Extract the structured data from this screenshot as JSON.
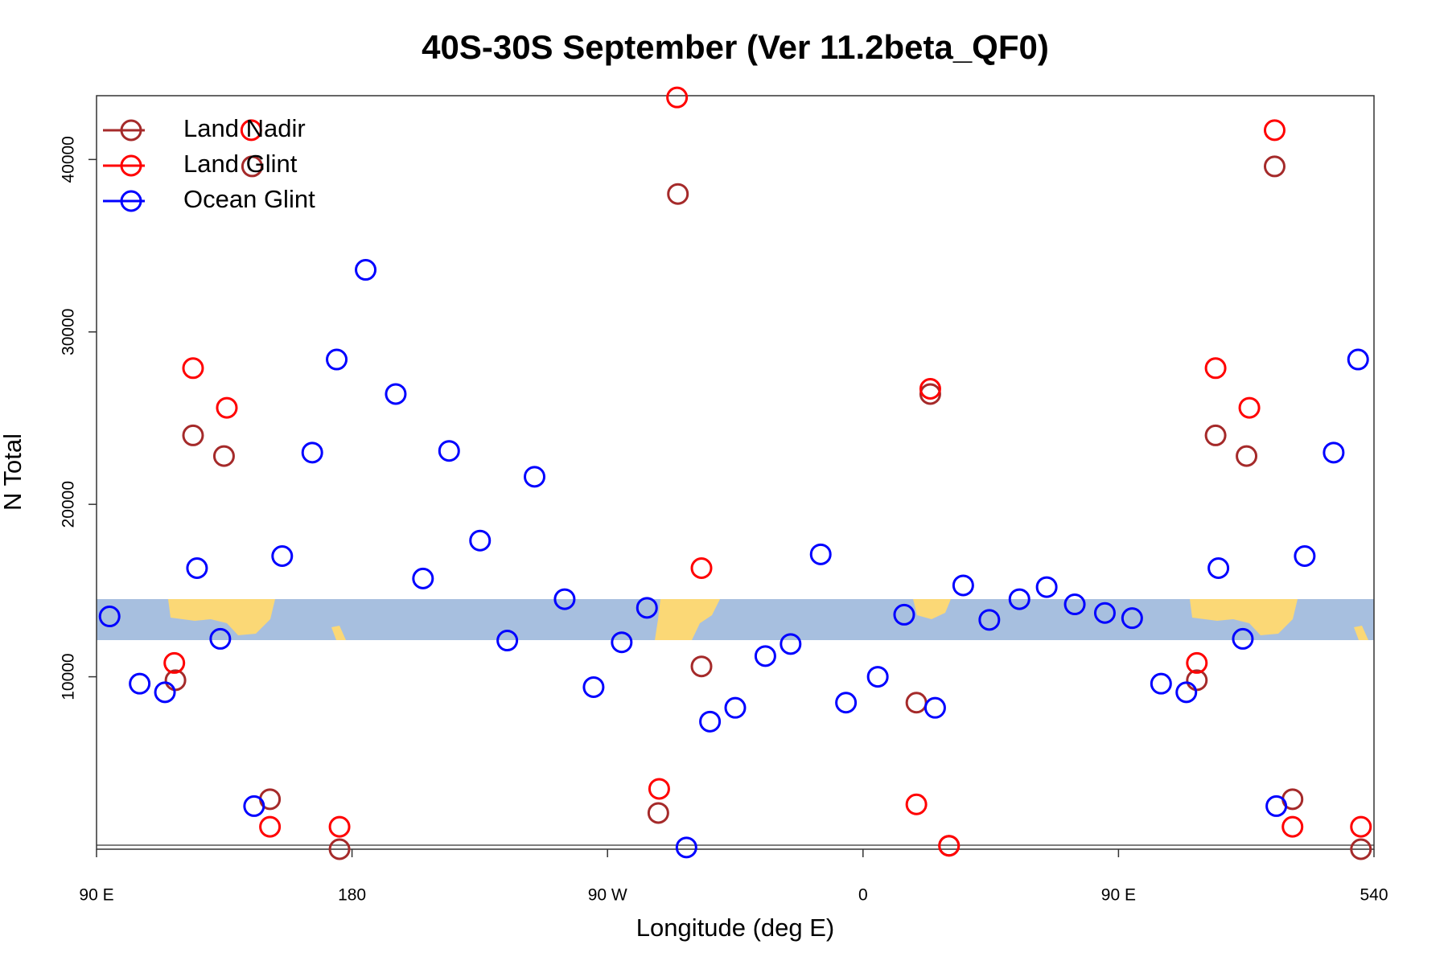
{
  "chart_data": {
    "type": "scatter",
    "title": "40S-30S September (Ver 11.2beta_QF0)",
    "x_label": "Longitude (deg E)",
    "y_label": "N Total",
    "xlim": [
      90,
      540
    ],
    "ylim": [
      0,
      43700
    ],
    "xticks": [
      {
        "value": 90,
        "label": "90 E"
      },
      180,
      {
        "value": 270,
        "label": "90 W"
      },
      {
        "value": 360,
        "label": "0"
      },
      {
        "value": 450,
        "label": "90 E"
      },
      540
    ],
    "yticks": [
      10000,
      20000,
      30000,
      40000
    ],
    "legend": "topleft",
    "series": [
      {
        "name": "Land Nadir",
        "color": "#a52a2a",
        "x": [
          117.8,
          124,
          134.9,
          144.8,
          151.1,
          175.6,
          294.8,
          287.9,
          303.1,
          378.8,
          383.7,
          390.3,
          477.6,
          484.2,
          495.1,
          505,
          511.3,
          535.4
        ],
        "values": [
          9800,
          24000,
          22800,
          39600,
          2900,
          0,
          38000,
          2100,
          10600,
          8500,
          26400,
          200,
          9800,
          24000,
          22800,
          39600,
          2900,
          0
        ]
      },
      {
        "name": "Land Glint",
        "color": "#ff0000",
        "x": [
          117.4,
          124,
          135.9,
          144.5,
          151.1,
          175.6,
          294.5,
          288.2,
          303.1,
          378.8,
          383.7,
          390.3,
          477.6,
          484.2,
          496.1,
          505,
          511.3,
          535.4
        ],
        "values": [
          10800,
          27900,
          25600,
          41700,
          1300,
          1300,
          43600,
          3500,
          16300,
          2600,
          26700,
          200,
          10800,
          27900,
          25600,
          41700,
          1300,
          1300
        ]
      },
      {
        "name": "Ocean Glint",
        "color": "#0000ff",
        "x": [
          94.6,
          105.2,
          114.1,
          125.4,
          133.6,
          145.5,
          155.4,
          166,
          174.6,
          184.8,
          195.4,
          205,
          214.2,
          225.1,
          234.7,
          244.3,
          254.9,
          265.1,
          275,
          283.9,
          297.8,
          306.1,
          315,
          325.6,
          334.5,
          345.1,
          354,
          365.2,
          374.5,
          385.4,
          395.3,
          404.5,
          415.1,
          424.7,
          434.6,
          445.2,
          454.8,
          465,
          473.9,
          485.2,
          493.8,
          505.6,
          515.6,
          525.8,
          534.4
        ],
        "values": [
          13500,
          9600,
          9100,
          16300,
          12200,
          2500,
          17000,
          23000,
          28400,
          33600,
          26400,
          15700,
          23100,
          17900,
          12100,
          21600,
          14500,
          9400,
          12000,
          14000,
          100,
          7400,
          8200,
          11200,
          11900,
          17100,
          8500,
          10000,
          13600,
          8200,
          15300,
          13300,
          14500,
          15200,
          14200,
          13700,
          13400,
          9600,
          9100,
          16300,
          12200,
          2500,
          17000,
          23000,
          28400
        ]
      }
    ]
  }
}
